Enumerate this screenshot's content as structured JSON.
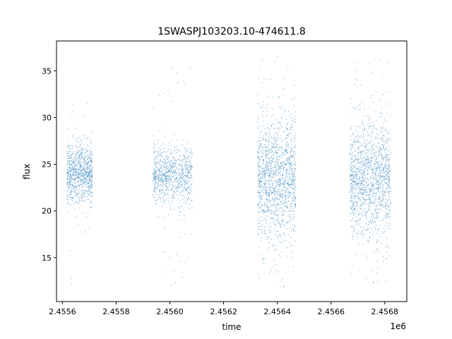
{
  "chart_data": {
    "type": "scatter",
    "title": "1SWASPJ103203.10-474611.8",
    "xlabel": "time",
    "ylabel": "flux",
    "x_offset_label": "1e6",
    "xlim": [
      2455578,
      2456882
    ],
    "ylim": [
      10.3,
      38.2
    ],
    "x_ticks": [
      2455600,
      2455800,
      2456000,
      2456200,
      2456400,
      2456600,
      2456800
    ],
    "x_tick_labels": [
      "2.4556",
      "2.4558",
      "2.4560",
      "2.4562",
      "2.4564",
      "2.4566",
      "2.4568"
    ],
    "y_ticks": [
      15,
      20,
      25,
      30,
      35
    ],
    "y_tick_labels": [
      "15",
      "20",
      "25",
      "30",
      "35"
    ],
    "grid": false,
    "point_color": "#1f77b4",
    "segments": [
      {
        "x_start": 2455617,
        "x_end": 2455712,
        "center_flux": 24.0,
        "spread": 1.6,
        "outlier_range": [
          11.5,
          32.0
        ]
      },
      {
        "x_start": 2455937,
        "x_end": 2456084,
        "center_flux": 23.8,
        "spread": 1.5,
        "outlier_range": [
          12.0,
          36.0
        ]
      },
      {
        "x_start": 2456327,
        "x_end": 2456469,
        "center_flux": 23.5,
        "spread": 3.2,
        "outlier_range": [
          11.5,
          36.8
        ]
      },
      {
        "x_start": 2456670,
        "x_end": 2456822,
        "center_flux": 23.5,
        "spread": 3.0,
        "outlier_range": [
          12.0,
          36.5
        ]
      }
    ]
  }
}
